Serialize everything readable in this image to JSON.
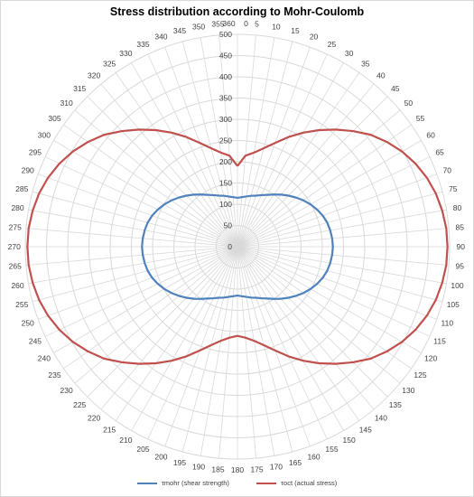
{
  "chart_data": {
    "type": "radar",
    "title": "Stress distribution according to Mohr-Coulomb",
    "angles": [
      0,
      5,
      10,
      15,
      20,
      25,
      30,
      35,
      40,
      45,
      50,
      55,
      60,
      65,
      70,
      75,
      80,
      85,
      90,
      95,
      100,
      105,
      110,
      115,
      120,
      125,
      130,
      135,
      140,
      145,
      150,
      155,
      160,
      165,
      170,
      175,
      180,
      185,
      190,
      195,
      200,
      205,
      210,
      215,
      220,
      225,
      230,
      235,
      240,
      245,
      250,
      255,
      260,
      265,
      270,
      275,
      280,
      285,
      290,
      295,
      300,
      305,
      310,
      315,
      320,
      325,
      330,
      335,
      340,
      345,
      350,
      355,
      360
    ],
    "radial_ticks": [
      0,
      50,
      100,
      150,
      200,
      250,
      300,
      350,
      400,
      450,
      500
    ],
    "rlim": [
      0,
      500
    ],
    "grid": true,
    "legend_position": "bottom",
    "series": [
      {
        "name": "τmohr (shear strength)",
        "color": "#4f81bd",
        "values": [
          115,
          117,
          120,
          124,
          128,
          134,
          141,
          150,
          160,
          170,
          180,
          190,
          199,
          207,
          214,
          219,
          222,
          224,
          225,
          224,
          222,
          219,
          214,
          207,
          199,
          190,
          180,
          170,
          160,
          150,
          141,
          134,
          128,
          124,
          120,
          117,
          115,
          117,
          120,
          124,
          128,
          134,
          141,
          150,
          160,
          170,
          180,
          190,
          199,
          207,
          214,
          219,
          222,
          224,
          225,
          224,
          222,
          219,
          214,
          207,
          199,
          190,
          180,
          170,
          160,
          150,
          141,
          134,
          128,
          124,
          120,
          117,
          115
        ]
      },
      {
        "name": "τoct (actual stress)",
        "color": "#c0504d",
        "values": [
          190,
          215,
          225,
          240,
          260,
          285,
          310,
          335,
          360,
          385,
          410,
          430,
          448,
          463,
          475,
          484,
          490,
          494,
          495,
          494,
          490,
          484,
          475,
          463,
          448,
          430,
          410,
          385,
          360,
          335,
          310,
          285,
          260,
          240,
          225,
          215,
          210,
          215,
          225,
          240,
          260,
          285,
          310,
          335,
          360,
          385,
          410,
          430,
          448,
          463,
          475,
          484,
          490,
          494,
          495,
          494,
          490,
          484,
          475,
          463,
          448,
          430,
          410,
          385,
          360,
          335,
          310,
          285,
          260,
          240,
          225,
          215,
          190
        ]
      }
    ]
  }
}
